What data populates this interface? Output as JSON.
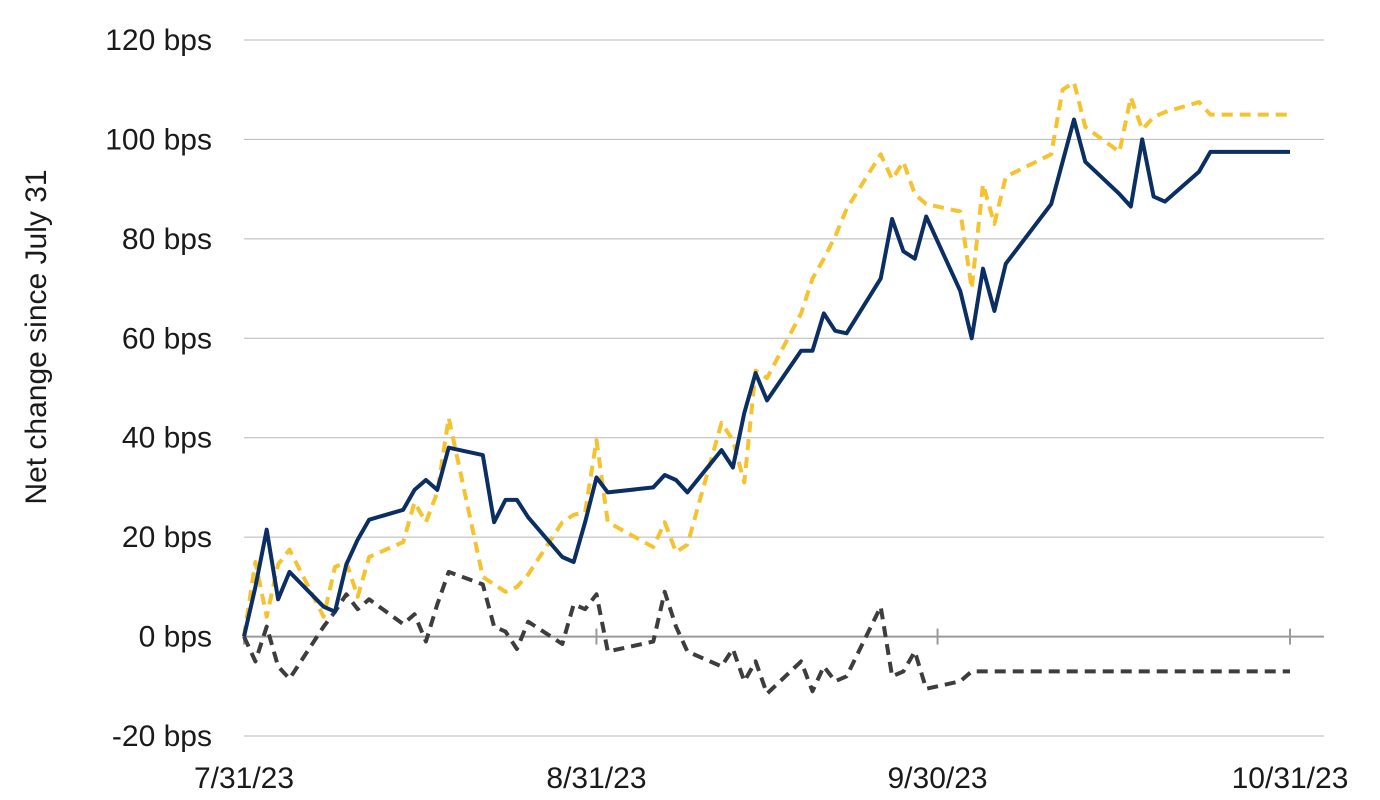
{
  "chart_data": {
    "type": "line",
    "title": "",
    "xlabel": "",
    "ylabel": "Net change since July 31",
    "ylim": [
      -20,
      120
    ],
    "y_ticks": [
      -20,
      0,
      20,
      40,
      60,
      80,
      100,
      120
    ],
    "y_tick_labels": [
      "-20 bps",
      "0 bps",
      "20 bps",
      "40 bps",
      "60 bps",
      "80 bps",
      "100 bps",
      "120 bps"
    ],
    "x_domain": [
      "2023-07-31",
      "2023-10-31"
    ],
    "x_ticks": [
      "2023-07-31",
      "2023-08-31",
      "2023-09-30",
      "2023-10-31"
    ],
    "x_tick_labels": [
      "7/31/23",
      "8/31/23",
      "9/30/23",
      "10/31/23"
    ],
    "grid": "horizontal",
    "legend": "none",
    "series": [
      {
        "color": "#0b2f63",
        "dash": "solid",
        "x": [
          "2023-07-31",
          "2023-08-01",
          "2023-08-02",
          "2023-08-03",
          "2023-08-04",
          "2023-08-07",
          "2023-08-08",
          "2023-08-09",
          "2023-08-10",
          "2023-08-11",
          "2023-08-14",
          "2023-08-15",
          "2023-08-16",
          "2023-08-17",
          "2023-08-18",
          "2023-08-21",
          "2023-08-22",
          "2023-08-23",
          "2023-08-24",
          "2023-08-25",
          "2023-08-28",
          "2023-08-29",
          "2023-08-30",
          "2023-08-31",
          "2023-09-01",
          "2023-09-05",
          "2023-09-06",
          "2023-09-07",
          "2023-09-08",
          "2023-09-11",
          "2023-09-12",
          "2023-09-13",
          "2023-09-14",
          "2023-09-15",
          "2023-09-18",
          "2023-09-19",
          "2023-09-20",
          "2023-09-21",
          "2023-09-22",
          "2023-09-25",
          "2023-09-26",
          "2023-09-27",
          "2023-09-28",
          "2023-09-29",
          "2023-10-02",
          "2023-10-03",
          "2023-10-04",
          "2023-10-05",
          "2023-10-06",
          "2023-10-10",
          "2023-10-11",
          "2023-10-12",
          "2023-10-13",
          "2023-10-16",
          "2023-10-17",
          "2023-10-18",
          "2023-10-19",
          "2023-10-20",
          "2023-10-23",
          "2023-10-24",
          "2023-10-25",
          "2023-10-26",
          "2023-10-27",
          "2023-10-30",
          "2023-10-31"
        ],
        "values": [
          0,
          10,
          21.5,
          7.5,
          13,
          6,
          5,
          14.5,
          19.5,
          23.5,
          25.5,
          29.5,
          31.5,
          29.5,
          38,
          36.5,
          23,
          27.5,
          27.5,
          24,
          16,
          15,
          23,
          32,
          29,
          30,
          32.5,
          31.5,
          29,
          37.5,
          34,
          45,
          53,
          47.5,
          57.5,
          57.5,
          65,
          61.5,
          61,
          72,
          84,
          77.5,
          76,
          84.5,
          69.5,
          60,
          74,
          65.5,
          75,
          87,
          95.5,
          104,
          95.5,
          89,
          86.5,
          100,
          88.5,
          87.5,
          93.5,
          97.5,
          97.5,
          97.5,
          97.5,
          97.5,
          97.5
        ]
      },
      {
        "color": "#f5c230",
        "dash": "dashed",
        "x": [
          "2023-07-31",
          "2023-08-01",
          "2023-08-02",
          "2023-08-03",
          "2023-08-04",
          "2023-08-07",
          "2023-08-08",
          "2023-08-09",
          "2023-08-10",
          "2023-08-11",
          "2023-08-14",
          "2023-08-15",
          "2023-08-16",
          "2023-08-17",
          "2023-08-18",
          "2023-08-21",
          "2023-08-22",
          "2023-08-23",
          "2023-08-24",
          "2023-08-25",
          "2023-08-28",
          "2023-08-29",
          "2023-08-30",
          "2023-08-31",
          "2023-09-01",
          "2023-09-05",
          "2023-09-06",
          "2023-09-07",
          "2023-09-08",
          "2023-09-11",
          "2023-09-12",
          "2023-09-13",
          "2023-09-14",
          "2023-09-15",
          "2023-09-18",
          "2023-09-19",
          "2023-09-20",
          "2023-09-21",
          "2023-09-22",
          "2023-09-25",
          "2023-09-26",
          "2023-09-27",
          "2023-09-28",
          "2023-09-29",
          "2023-10-02",
          "2023-10-03",
          "2023-10-04",
          "2023-10-05",
          "2023-10-06",
          "2023-10-10",
          "2023-10-11",
          "2023-10-12",
          "2023-10-13",
          "2023-10-16",
          "2023-10-17",
          "2023-10-18",
          "2023-10-19",
          "2023-10-20",
          "2023-10-23",
          "2023-10-24",
          "2023-10-25",
          "2023-10-26",
          "2023-10-27",
          "2023-10-30",
          "2023-10-31"
        ],
        "values": [
          0,
          15,
          4,
          14.5,
          17.5,
          4,
          14,
          15,
          8,
          16,
          19,
          27,
          23,
          29,
          44,
          12,
          10.5,
          9,
          10,
          12.5,
          23,
          24.5,
          25,
          39.5,
          23,
          18,
          23,
          17,
          18.5,
          43,
          39.5,
          31,
          53.5,
          52,
          65,
          72,
          76,
          80.5,
          86,
          97,
          92,
          95.5,
          89,
          87,
          85.5,
          70,
          91,
          83,
          92.5,
          97,
          110,
          111.5,
          102.5,
          97.5,
          108.5,
          102,
          104.5,
          105.5,
          107.5,
          105,
          105,
          105,
          105,
          105,
          105
        ]
      },
      {
        "color": "#3d3d3d",
        "dash": "dashed",
        "x": [
          "2023-07-31",
          "2023-08-01",
          "2023-08-02",
          "2023-08-03",
          "2023-08-04",
          "2023-08-07",
          "2023-08-08",
          "2023-08-09",
          "2023-08-10",
          "2023-08-11",
          "2023-08-14",
          "2023-08-15",
          "2023-08-16",
          "2023-08-17",
          "2023-08-18",
          "2023-08-21",
          "2023-08-22",
          "2023-08-23",
          "2023-08-24",
          "2023-08-25",
          "2023-08-28",
          "2023-08-29",
          "2023-08-30",
          "2023-08-31",
          "2023-09-01",
          "2023-09-05",
          "2023-09-06",
          "2023-09-07",
          "2023-09-08",
          "2023-09-11",
          "2023-09-12",
          "2023-09-13",
          "2023-09-14",
          "2023-09-15",
          "2023-09-18",
          "2023-09-19",
          "2023-09-20",
          "2023-09-21",
          "2023-09-22",
          "2023-09-25",
          "2023-09-26",
          "2023-09-27",
          "2023-09-28",
          "2023-09-29",
          "2023-10-02",
          "2023-10-03",
          "2023-10-04",
          "2023-10-05",
          "2023-10-06",
          "2023-10-10",
          "2023-10-11",
          "2023-10-12",
          "2023-10-13",
          "2023-10-16",
          "2023-10-17",
          "2023-10-18",
          "2023-10-19",
          "2023-10-20",
          "2023-10-23",
          "2023-10-24",
          "2023-10-25",
          "2023-10-26",
          "2023-10-27",
          "2023-10-30",
          "2023-10-31"
        ],
        "values": [
          0,
          -5,
          2,
          -6,
          -8.5,
          2,
          5,
          8.5,
          5.5,
          7.5,
          2.5,
          4.5,
          -1,
          6.5,
          13,
          10.5,
          2,
          1,
          -2.5,
          3,
          -1.5,
          6.5,
          5.5,
          8.5,
          -3,
          -1,
          9,
          2,
          -3,
          -6,
          -2.5,
          -9,
          -5,
          -11.5,
          -5,
          -11,
          -6,
          -9,
          -8,
          6,
          -8,
          -7,
          -3,
          -10.5,
          -9,
          -7,
          -7,
          -7,
          -7,
          -7,
          -7,
          -7,
          -7,
          -7,
          -7,
          -7,
          -7,
          -7,
          -7,
          -7,
          -7,
          -7,
          -7,
          -7,
          -7
        ]
      }
    ]
  }
}
